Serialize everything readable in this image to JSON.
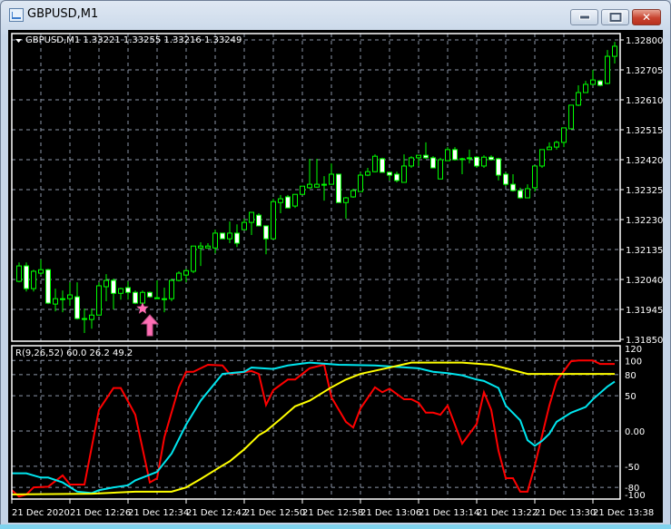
{
  "window": {
    "title": "GBPUSD,M1",
    "buttons": {
      "minimize": "minimize",
      "maximize": "maximize",
      "close": "✕"
    }
  },
  "chart": {
    "header": "GBPUSD,M1  1.33221 1.33255 1.33216 1.33249",
    "colors": {
      "background": "#000000",
      "grid": "#8c96a8",
      "candle_outline": "#00ff00",
      "bull_body": "#000000",
      "bear_body": "#ffffff",
      "signal": "#ff6eb4"
    },
    "price_axis": [
      "1.32800",
      "1.32705",
      "1.32610",
      "1.32515",
      "1.32420",
      "1.32325",
      "1.32230",
      "1.32135",
      "1.32040",
      "1.31945",
      "1.31850"
    ],
    "time_axis": [
      "21 Dec 2020",
      "21 Dec 12:26",
      "21 Dec 12:34",
      "21 Dec 12:42",
      "21 Dec 12:50",
      "21 Dec 12:58",
      "21 Dec 13:06",
      "21 Dec 13:14",
      "21 Dec 13:22",
      "21 Dec 13:30",
      "21 Dec 13:38"
    ],
    "signals": [
      {
        "type": "star-icon",
        "time": "12:37"
      },
      {
        "type": "arrow-up-icon",
        "time": "12:38"
      }
    ]
  },
  "chart_data": [
    {
      "type": "candlestick",
      "title": "GBPUSD,M1",
      "x_start": "12:19",
      "x_step_minutes": 1,
      "ylim": [
        1.3185,
        1.328
      ],
      "grid": true,
      "ohlc": [
        [
          1.32034,
          1.32094,
          1.32031,
          1.32083
        ],
        [
          1.32083,
          1.32094,
          1.32002,
          1.32011
        ],
        [
          1.32011,
          1.32071,
          1.32002,
          1.32066
        ],
        [
          1.3206,
          1.32103,
          1.32054,
          1.32071
        ],
        [
          1.32071,
          1.32074,
          1.31962,
          1.31965
        ],
        [
          1.31962,
          1.32011,
          1.31939,
          1.31979
        ],
        [
          1.31979,
          1.32005,
          1.31936,
          1.31979
        ],
        [
          1.31979,
          1.32031,
          1.31956,
          1.31991
        ],
        [
          1.31985,
          1.32031,
          1.31913,
          1.31916
        ],
        [
          1.31916,
          1.31948,
          1.3187,
          1.31916
        ],
        [
          1.31913,
          1.31948,
          1.31884,
          1.31927
        ],
        [
          1.31927,
          1.32031,
          1.31927,
          1.3202
        ],
        [
          1.32017,
          1.32057,
          1.31971,
          1.32037
        ],
        [
          1.32037,
          1.32043,
          1.31945,
          1.31996
        ],
        [
          1.31996,
          1.32014,
          1.31976,
          1.32011
        ],
        [
          1.32014,
          1.32034,
          1.31976,
          1.31999
        ],
        [
          1.31999,
          1.32005,
          1.31962,
          1.31965
        ],
        [
          1.31965,
          1.32005,
          1.31962,
          1.31999
        ],
        [
          1.31999,
          1.32002,
          1.31982,
          1.31985
        ],
        [
          1.31982,
          1.32037,
          1.31979,
          1.31982
        ],
        [
          1.31979,
          1.32014,
          1.31936,
          1.31979
        ],
        [
          1.31979,
          1.32043,
          1.31971,
          1.32037
        ],
        [
          1.32037,
          1.32066,
          1.32034,
          1.3206
        ],
        [
          1.32054,
          1.32074,
          1.32031,
          1.32068
        ],
        [
          1.32066,
          1.32146,
          1.3206,
          1.32146
        ],
        [
          1.3214,
          1.32158,
          1.32083,
          1.32146
        ],
        [
          1.3214,
          1.32155,
          1.3214,
          1.32146
        ],
        [
          1.3214,
          1.32198,
          1.32123,
          1.32187
        ],
        [
          1.32187,
          1.32187,
          1.32169,
          1.32169
        ],
        [
          1.32169,
          1.32224,
          1.32155,
          1.32187
        ],
        [
          1.32187,
          1.32215,
          1.32143,
          1.32155
        ],
        [
          1.32198,
          1.32233,
          1.32198,
          1.32221
        ],
        [
          1.32221,
          1.32253,
          1.32181,
          1.32253
        ],
        [
          1.32244,
          1.3225,
          1.3221,
          1.3221
        ],
        [
          1.3221,
          1.3221,
          1.3212,
          1.32169
        ],
        [
          1.32169,
          1.32296,
          1.32169,
          1.32287
        ],
        [
          1.32284,
          1.32308,
          1.3225,
          1.32296
        ],
        [
          1.32302,
          1.32308,
          1.32267,
          1.32267
        ],
        [
          1.32273,
          1.3231,
          1.32267,
          1.3231
        ],
        [
          1.3231,
          1.32336,
          1.32308,
          1.32336
        ],
        [
          1.32331,
          1.32423,
          1.32328,
          1.32342
        ],
        [
          1.32333,
          1.32423,
          1.32331,
          1.32342
        ],
        [
          1.32342,
          1.32368,
          1.3229,
          1.32342
        ],
        [
          1.32342,
          1.32408,
          1.32342,
          1.32374
        ],
        [
          1.32374,
          1.32374,
          1.32284,
          1.32284
        ],
        [
          1.32284,
          1.32302,
          1.32233,
          1.32299
        ],
        [
          1.32302,
          1.32328,
          1.32299,
          1.32322
        ],
        [
          1.32319,
          1.3238,
          1.32319,
          1.32371
        ],
        [
          1.32371,
          1.32394,
          1.32368,
          1.32382
        ],
        [
          1.32382,
          1.32437,
          1.3238,
          1.32431
        ],
        [
          1.32423,
          1.32426,
          1.3238,
          1.3238
        ],
        [
          1.3238,
          1.32382,
          1.32354,
          1.32371
        ],
        [
          1.32374,
          1.32382,
          1.32348,
          1.32354
        ],
        [
          1.32348,
          1.32437,
          1.32348,
          1.324
        ],
        [
          1.324,
          1.32431,
          1.32394,
          1.32426
        ],
        [
          1.32426,
          1.32434,
          1.324,
          1.32434
        ],
        [
          1.32434,
          1.32475,
          1.32423,
          1.32426
        ],
        [
          1.32426,
          1.32431,
          1.32394,
          1.32394
        ],
        [
          1.32359,
          1.32426,
          1.32359,
          1.3242
        ],
        [
          1.32417,
          1.3246,
          1.32417,
          1.32452
        ],
        [
          1.32452,
          1.3246,
          1.32417,
          1.3242
        ],
        [
          1.32423,
          1.32426,
          1.32374,
          1.32423
        ],
        [
          1.32426,
          1.32452,
          1.32408,
          1.32426
        ],
        [
          1.32428,
          1.32431,
          1.32394,
          1.324
        ],
        [
          1.324,
          1.32434,
          1.32394,
          1.32428
        ],
        [
          1.32428,
          1.32434,
          1.32417,
          1.3242
        ],
        [
          1.32423,
          1.32426,
          1.32354,
          1.32371
        ],
        [
          1.32374,
          1.3238,
          1.32336,
          1.32342
        ],
        [
          1.32342,
          1.32374,
          1.32319,
          1.32322
        ],
        [
          1.32322,
          1.32331,
          1.32296,
          1.32299
        ],
        [
          1.32299,
          1.32342,
          1.32299,
          1.32328
        ],
        [
          1.32331,
          1.324,
          1.32319,
          1.324
        ],
        [
          1.324,
          1.32452,
          1.32394,
          1.32452
        ],
        [
          1.32452,
          1.32475,
          1.32452,
          1.3246
        ],
        [
          1.3246,
          1.3248,
          1.32452,
          1.32475
        ],
        [
          1.32475,
          1.32521,
          1.3246,
          1.32521
        ],
        [
          1.32518,
          1.32593,
          1.32518,
          1.32593
        ],
        [
          1.32593,
          1.32656,
          1.3259,
          1.32633
        ],
        [
          1.32633,
          1.3267,
          1.32633,
          1.32659
        ],
        [
          1.32659,
          1.32705,
          1.32656,
          1.32673
        ],
        [
          1.3267,
          1.32673,
          1.32653,
          1.32656
        ],
        [
          1.32662,
          1.32768,
          1.32659,
          1.32748
        ],
        [
          1.32748,
          1.32794,
          1.32725,
          1.3278
        ]
      ]
    },
    {
      "type": "line",
      "title": "R(9,26,52) 60.0 26.2 49.2",
      "ylim": [
        -100,
        120
      ],
      "yticks": [
        "120",
        "100",
        "80",
        "50",
        "0.00",
        "-50",
        "-80",
        "-100"
      ],
      "ytick_values": [
        120,
        100,
        80,
        50,
        0,
        -50,
        -80,
        -100
      ],
      "grid": true,
      "series": [
        {
          "color": "#ff0000",
          "points": [
            [
              "12:18",
              -84
            ],
            [
              "12:19",
              -93
            ],
            [
              "12:20",
              -90
            ],
            [
              "12:21",
              -80
            ],
            [
              "12:23",
              -79
            ],
            [
              "12:25",
              -63
            ],
            [
              "12:26",
              -76
            ],
            [
              "12:28",
              -76
            ],
            [
              "12:30",
              30
            ],
            [
              "12:32",
              61
            ],
            [
              "12:33",
              61
            ],
            [
              "12:35",
              23
            ],
            [
              "12:37",
              -73
            ],
            [
              "12:38",
              -67
            ],
            [
              "12:39",
              -9
            ],
            [
              "12:41",
              62
            ],
            [
              "12:42",
              84
            ],
            [
              "12:43",
              84
            ],
            [
              "12:45",
              94
            ],
            [
              "12:47",
              93
            ],
            [
              "12:48",
              81
            ],
            [
              "12:51",
              85
            ],
            [
              "12:52",
              81
            ],
            [
              "12:53",
              37
            ],
            [
              "12:54",
              58
            ],
            [
              "12:56",
              73
            ],
            [
              "12:57",
              73
            ],
            [
              "12:59",
              89
            ],
            [
              "13:01",
              94
            ],
            [
              "13:02",
              48
            ],
            [
              "13:04",
              13
            ],
            [
              "13:05",
              5
            ],
            [
              "13:06",
              32
            ],
            [
              "13:08",
              62
            ],
            [
              "13:09",
              55
            ],
            [
              "13:10",
              60
            ],
            [
              "13:12",
              45
            ],
            [
              "13:13",
              45
            ],
            [
              "13:14",
              40
            ],
            [
              "13:15",
              26
            ],
            [
              "13:16",
              26
            ],
            [
              "13:17",
              23
            ],
            [
              "13:18",
              36
            ],
            [
              "13:20",
              -18
            ],
            [
              "13:22",
              10
            ],
            [
              "13:23",
              55
            ],
            [
              "13:24",
              30
            ],
            [
              "13:25",
              -28
            ],
            [
              "13:26",
              -67
            ],
            [
              "13:27",
              -67
            ],
            [
              "13:28",
              -86
            ],
            [
              "13:29",
              -86
            ],
            [
              "13:30",
              -49
            ],
            [
              "13:32",
              36
            ],
            [
              "13:33",
              71
            ],
            [
              "13:35",
              99
            ],
            [
              "13:36",
              100
            ],
            [
              "13:38",
              100
            ],
            [
              "13:39",
              95
            ],
            [
              "13:41",
              95
            ]
          ]
        },
        {
          "color": "#00e5ee",
          "points": [
            [
              "12:18",
              -60
            ],
            [
              "12:20",
              -60
            ],
            [
              "12:22",
              -66
            ],
            [
              "12:23",
              -66
            ],
            [
              "12:25",
              -73
            ],
            [
              "12:27",
              -86
            ],
            [
              "12:29",
              -88
            ],
            [
              "12:30",
              -84
            ],
            [
              "12:32",
              -80
            ],
            [
              "12:34",
              -77
            ],
            [
              "12:35",
              -70
            ],
            [
              "12:38",
              -58
            ],
            [
              "12:40",
              -32
            ],
            [
              "12:42",
              9
            ],
            [
              "12:44",
              43
            ],
            [
              "12:47",
              81
            ],
            [
              "12:50",
              84
            ],
            [
              "12:51",
              90
            ],
            [
              "12:54",
              88
            ],
            [
              "12:56",
              93
            ],
            [
              "12:59",
              97
            ],
            [
              "13:03",
              94
            ],
            [
              "13:08",
              93
            ],
            [
              "13:14",
              89
            ],
            [
              "13:16",
              84
            ],
            [
              "13:18",
              82
            ],
            [
              "13:20",
              79
            ],
            [
              "13:22",
              73
            ],
            [
              "13:23",
              71
            ],
            [
              "13:25",
              61
            ],
            [
              "13:26",
              36
            ],
            [
              "13:28",
              15
            ],
            [
              "13:29",
              -13
            ],
            [
              "13:30",
              -21
            ],
            [
              "13:31",
              -14
            ],
            [
              "13:32",
              -4
            ],
            [
              "13:33",
              13
            ],
            [
              "13:35",
              26
            ],
            [
              "13:37",
              34
            ],
            [
              "13:38",
              45
            ],
            [
              "13:40",
              63
            ],
            [
              "13:41",
              70
            ]
          ]
        },
        {
          "color": "#ffff00",
          "points": [
            [
              "12:18",
              -90
            ],
            [
              "12:29",
              -89
            ],
            [
              "12:35",
              -86
            ],
            [
              "12:40",
              -86
            ],
            [
              "12:42",
              -80
            ],
            [
              "12:44",
              -68
            ],
            [
              "12:47",
              -49
            ],
            [
              "12:48",
              -43
            ],
            [
              "12:50",
              -26
            ],
            [
              "12:52",
              -6
            ],
            [
              "12:53",
              0
            ],
            [
              "12:55",
              17
            ],
            [
              "12:57",
              35
            ],
            [
              "12:59",
              43
            ],
            [
              "13:02",
              62
            ],
            [
              "13:04",
              73
            ],
            [
              "13:06",
              81
            ],
            [
              "13:10",
              90
            ],
            [
              "13:13",
              97
            ],
            [
              "13:20",
              97
            ],
            [
              "13:24",
              94
            ],
            [
              "13:26",
              89
            ],
            [
              "13:29",
              81
            ],
            [
              "13:41",
              81
            ]
          ]
        }
      ]
    }
  ]
}
